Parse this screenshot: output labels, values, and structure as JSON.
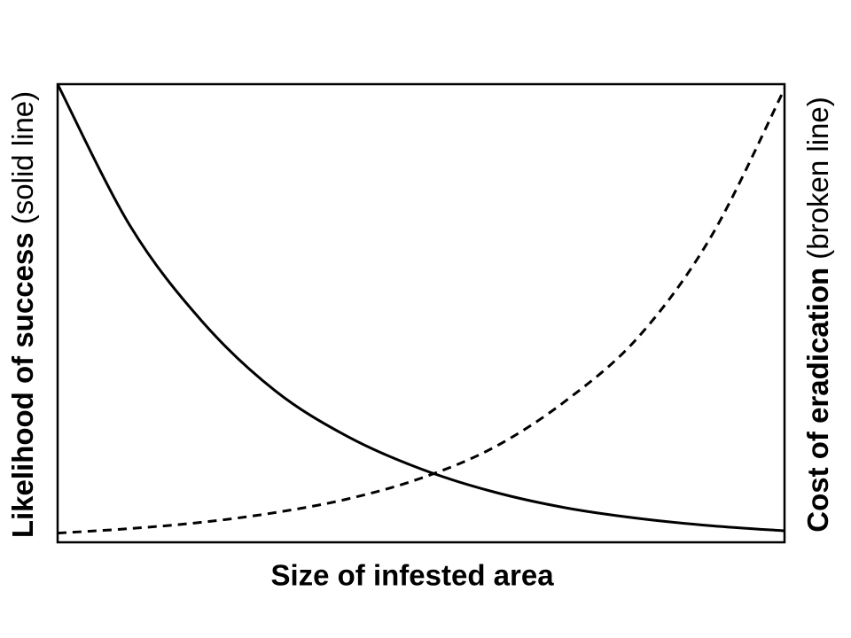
{
  "chart_data": {
    "type": "line",
    "x_label": "Size of infested area",
    "y_label": "Likelihood of success",
    "y_label_note": "(solid line)",
    "y2_label": "Cost of eradication",
    "y2_label_note": "(broken line)",
    "x": [
      0,
      0.1,
      0.2,
      0.3,
      0.4,
      0.5,
      0.6,
      0.7,
      0.8,
      0.9,
      1.0
    ],
    "xlim": [
      0,
      1
    ],
    "ylim": [
      0,
      1
    ],
    "y2lim": [
      0,
      1
    ],
    "series": [
      {
        "color": "#000000",
        "dash": false,
        "values": [
          1.0,
          0.69,
          0.48,
          0.33,
          0.23,
          0.16,
          0.11,
          0.075,
          0.052,
          0.036,
          0.025
        ]
      },
      {
        "color": "#000000",
        "dash": true,
        "axis": "y2",
        "values": [
          0.02,
          0.03,
          0.044,
          0.065,
          0.095,
          0.14,
          0.207,
          0.31,
          0.45,
          0.67,
          0.99
        ]
      }
    ]
  }
}
